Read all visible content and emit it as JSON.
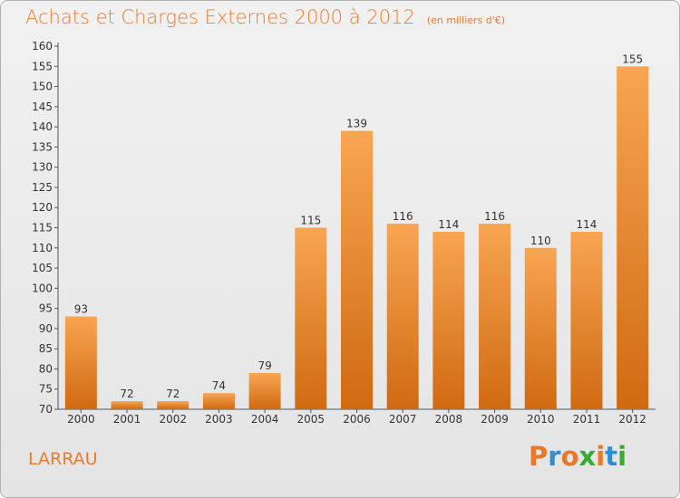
{
  "header": {
    "title": "Achats et Charges Externes 2000 à 2012",
    "unit": "(en milliers d'€)"
  },
  "footer": {
    "location": "LARRAU",
    "logo_text": "Proxiti"
  },
  "colors": {
    "accent": "#f07a2c",
    "bar_light": "#f8a552",
    "bar_dark": "#d06a12",
    "logo_letters": [
      "#e8792a",
      "#2e8fd0",
      "#e8792a",
      "#3aaa35",
      "#e8792a",
      "#2e8fd0",
      "#3aaa35"
    ]
  },
  "chart_data": {
    "type": "bar",
    "title": "Achats et Charges Externes 2000 à 2012",
    "subtitle": "(en milliers d'€)",
    "xlabel": "",
    "ylabel": "",
    "categories": [
      "2000",
      "2001",
      "2002",
      "2003",
      "2004",
      "2005",
      "2006",
      "2007",
      "2008",
      "2009",
      "2010",
      "2011",
      "2012"
    ],
    "values": [
      93,
      72,
      72,
      74,
      79,
      115,
      139,
      116,
      114,
      116,
      110,
      114,
      155
    ],
    "ylim": [
      70,
      160
    ],
    "yticks": [
      70,
      75,
      80,
      85,
      90,
      95,
      100,
      105,
      110,
      115,
      120,
      125,
      130,
      135,
      140,
      145,
      150,
      155,
      160
    ],
    "grid": false,
    "legend": "none"
  }
}
